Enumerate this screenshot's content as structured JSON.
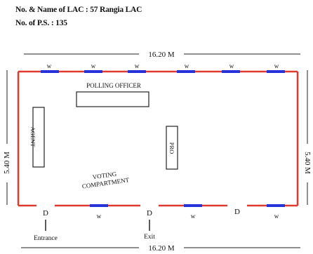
{
  "header": {
    "lac": "No. & Name of LAC : 57 Rangia LAC",
    "ps": "No. of P.S. : 135"
  },
  "dimensions": {
    "top": "16.20 M",
    "bottom": "16.20 M",
    "left": "5.40 M",
    "right": "5.40 M"
  },
  "labels": {
    "polling_officer": "POLLING OFFICER",
    "agent": "AGENT",
    "pro": "PRO",
    "voting_compartment_line1": "VOTING",
    "voting_compartment_line2": "COMPARTMENT",
    "entrance": "Entrance",
    "exit": "Exit"
  },
  "windows": {
    "top": [
      "w",
      "w",
      "w",
      "w",
      "w",
      "w"
    ],
    "bottom": [
      "w",
      "w",
      "w"
    ]
  },
  "doors": [
    "D",
    "D",
    "D"
  ],
  "colors": {
    "wall": "#e03a2f",
    "window": "#2633d8",
    "line": "#222222"
  }
}
